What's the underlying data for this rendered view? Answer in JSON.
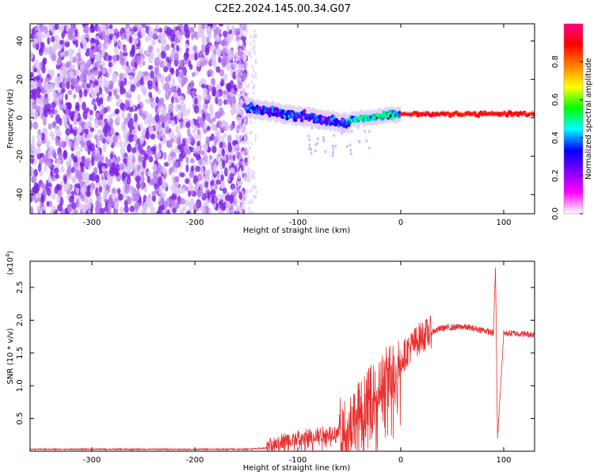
{
  "title": "C2E2.2024.145.00.34.G07",
  "chart_data": [
    {
      "type": "heatmap",
      "xlabel": "Height of straight line (km)",
      "ylabel": "Frequency (Hz)",
      "xlim": [
        -360,
        130
      ],
      "ylim": [
        -50,
        49
      ],
      "xticks": [
        -300,
        -200,
        -100,
        0,
        100
      ],
      "yticks": [
        -40,
        -20,
        0,
        20,
        40
      ],
      "colorbar": {
        "label": "Normalized spectral amplitude",
        "range": [
          0,
          1
        ],
        "ticks": [
          "0.0",
          "0.2",
          "0.4",
          "0.6",
          "0.8"
        ],
        "colormap": [
          "#ffffff",
          "#ff00ff",
          "#8000ff",
          "#0000ff",
          "#00ffff",
          "#00ff00",
          "#ffff00",
          "#ff8000",
          "#ff0000",
          "#ff0080"
        ]
      },
      "regions": [
        {
          "x_range": [
            -360,
            -150
          ],
          "freq_range": [
            -50,
            49
          ],
          "amplitude": 0.1,
          "note_pattern": "noise"
        },
        {
          "x_range": [
            -150,
            -50
          ],
          "center_freq_start": 5,
          "center_freq_end": -3,
          "amplitude": 0.35
        },
        {
          "x_range": [
            -50,
            0
          ],
          "center_freq_start": -1,
          "center_freq_end": 2,
          "amplitude": 0.5
        },
        {
          "x_range": [
            0,
            130
          ],
          "center_freq": 2,
          "amplitude": 0.9
        }
      ]
    },
    {
      "type": "line",
      "xlabel": "Height of straight line (km)",
      "ylabel": "SNR (10 * v/v)",
      "scale_label": "(x10",
      "scale_exp": "4",
      "scale_close": ")",
      "xlim": [
        -360,
        130
      ],
      "ylim": [
        0,
        2.9
      ],
      "xticks": [
        -300,
        -200,
        -100,
        0,
        100
      ],
      "yticks": [
        "0.5",
        "1.0",
        "1.5",
        "2.0",
        "2.5"
      ],
      "color": "#e83030",
      "series": [
        {
          "x": [
            -360,
            -150,
            -130,
            -120,
            -100,
            -80,
            -60,
            -50,
            -40,
            -30,
            -20,
            -10,
            0,
            10,
            20,
            30,
            40,
            60,
            80,
            90,
            92,
            94,
            100,
            110,
            130
          ],
          "y": [
            0.03,
            0.03,
            0.05,
            0.15,
            0.2,
            0.25,
            0.3,
            0.45,
            0.6,
            0.8,
            1.0,
            1.2,
            1.4,
            1.6,
            1.75,
            1.82,
            1.88,
            1.9,
            1.85,
            1.8,
            2.8,
            0.2,
            1.8,
            1.8,
            1.78
          ]
        }
      ]
    }
  ]
}
